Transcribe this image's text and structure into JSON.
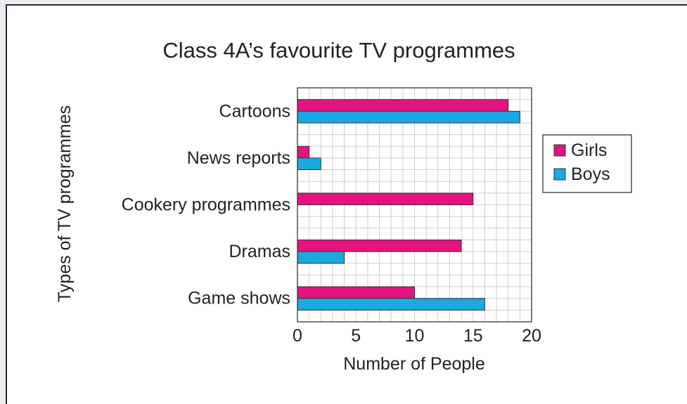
{
  "chart_data": {
    "type": "bar",
    "orientation": "horizontal",
    "title": "Class 4A’s favourite TV programmes",
    "xlabel": "Number of People",
    "ylabel": "Types of TV programmes",
    "categories": [
      "Cartoons",
      "News reports",
      "Cookery programmes",
      "Dramas",
      "Game shows"
    ],
    "series": [
      {
        "name": "Girls",
        "color": "#e5137f",
        "values": [
          18,
          1,
          15,
          14,
          10
        ]
      },
      {
        "name": "Boys",
        "color": "#1ba9e1",
        "values": [
          19,
          2,
          0,
          4,
          16
        ]
      }
    ],
    "xlim": [
      0,
      20
    ],
    "xticks": [
      0,
      5,
      10,
      15,
      20
    ],
    "grid": true,
    "legend_position": "right"
  }
}
